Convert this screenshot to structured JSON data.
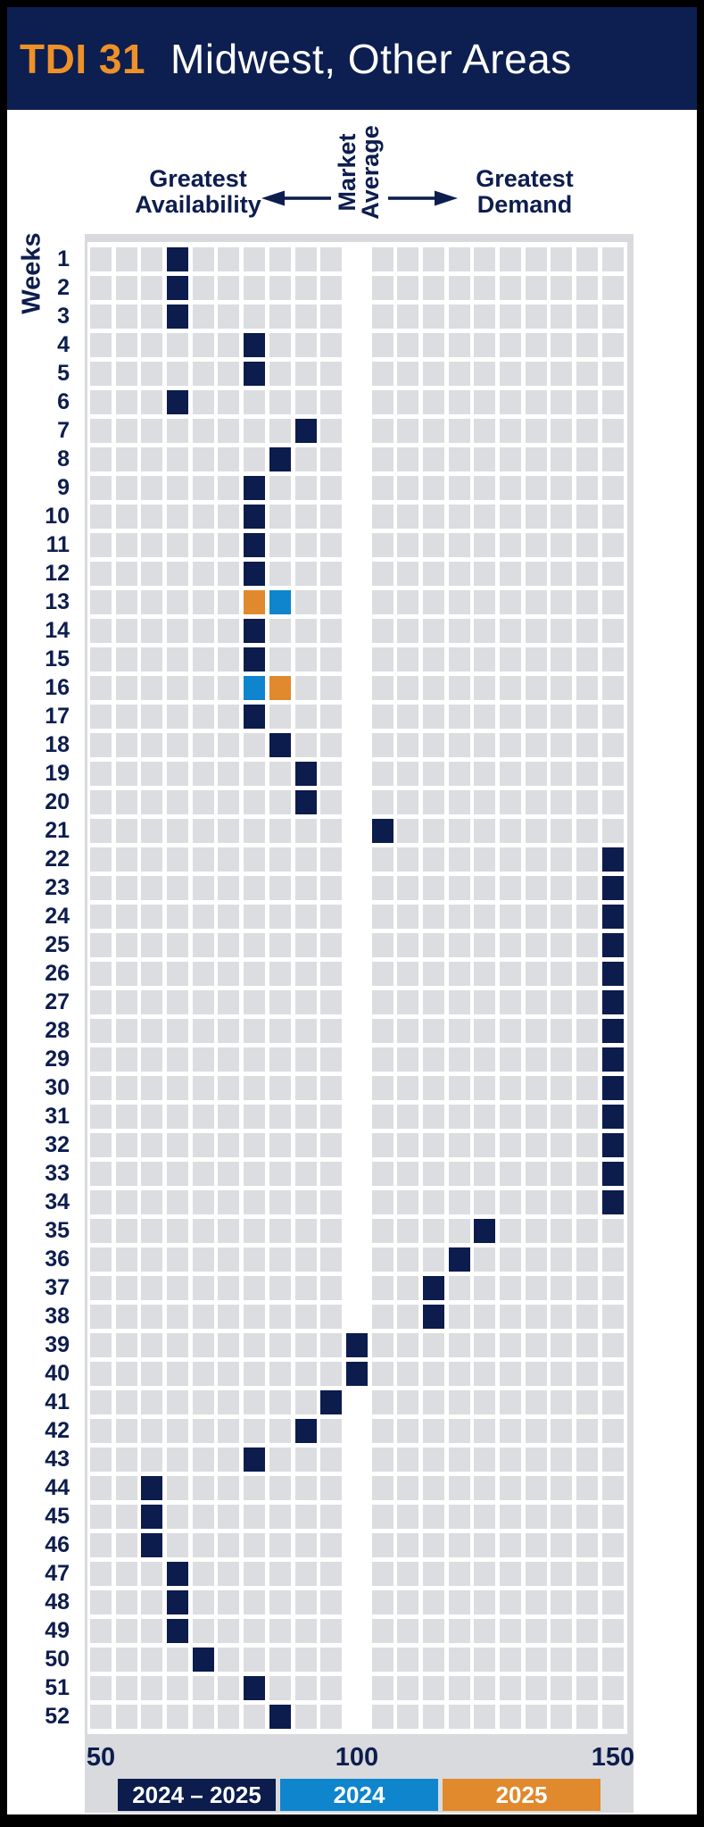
{
  "header": {
    "brand": "TDI 31",
    "title": "Midwest, Other Areas"
  },
  "annotations": {
    "left_lines": [
      "Greatest",
      "Availability"
    ],
    "center_lines": [
      "Market",
      "Average"
    ],
    "right_lines": [
      "Greatest",
      "Demand"
    ]
  },
  "colors": {
    "navy": "#0b1c4d",
    "blue": "#0e85cd",
    "orange": "#e0892d",
    "header_bg": "#0d1e50",
    "brand_orange": "#ee9128",
    "cell_gray": "#dcdde0",
    "panel_gray": "#d9dadd"
  },
  "legend": {
    "items": [
      {
        "label": "2024 – 2025",
        "color": "#0b1c4d"
      },
      {
        "label": "2024",
        "color": "#0e85cd"
      },
      {
        "label": "2025",
        "color": "#e0892d"
      }
    ]
  },
  "chart_data": {
    "type": "heatmap",
    "title": "TDI 31 Midwest, Other Areas",
    "y_label": "Weeks",
    "y_categories": [
      1,
      2,
      3,
      4,
      5,
      6,
      7,
      8,
      9,
      10,
      11,
      12,
      13,
      14,
      15,
      16,
      17,
      18,
      19,
      20,
      21,
      22,
      23,
      24,
      25,
      26,
      27,
      28,
      29,
      30,
      31,
      32,
      33,
      34,
      35,
      36,
      37,
      38,
      39,
      40,
      41,
      42,
      43,
      44,
      45,
      46,
      47,
      48,
      49,
      50,
      51,
      52
    ],
    "x_min": 50,
    "x_max": 150,
    "x_step": 5,
    "x_ticks": [
      50,
      100,
      150
    ],
    "market_average": 100,
    "axis_semantics": {
      "left": "Greatest Availability",
      "center": "Market Average",
      "right": "Greatest Demand"
    },
    "series": [
      {
        "name": "2024 – 2025",
        "color": "#0b1c4d",
        "points": [
          {
            "week": 1,
            "value": 65
          },
          {
            "week": 2,
            "value": 65
          },
          {
            "week": 3,
            "value": 65
          },
          {
            "week": 4,
            "value": 80
          },
          {
            "week": 5,
            "value": 80
          },
          {
            "week": 6,
            "value": 65
          },
          {
            "week": 7,
            "value": 90
          },
          {
            "week": 8,
            "value": 85
          },
          {
            "week": 9,
            "value": 80
          },
          {
            "week": 10,
            "value": 80
          },
          {
            "week": 11,
            "value": 80
          },
          {
            "week": 12,
            "value": 80
          },
          {
            "week": 14,
            "value": 80
          },
          {
            "week": 15,
            "value": 80
          },
          {
            "week": 17,
            "value": 80
          },
          {
            "week": 18,
            "value": 85
          },
          {
            "week": 19,
            "value": 90
          },
          {
            "week": 20,
            "value": 90
          },
          {
            "week": 21,
            "value": 105
          },
          {
            "week": 22,
            "value": 150
          },
          {
            "week": 23,
            "value": 150
          },
          {
            "week": 24,
            "value": 150
          },
          {
            "week": 25,
            "value": 150
          },
          {
            "week": 26,
            "value": 150
          },
          {
            "week": 27,
            "value": 150
          },
          {
            "week": 28,
            "value": 150
          },
          {
            "week": 29,
            "value": 150
          },
          {
            "week": 30,
            "value": 150
          },
          {
            "week": 31,
            "value": 150
          },
          {
            "week": 32,
            "value": 150
          },
          {
            "week": 33,
            "value": 150
          },
          {
            "week": 34,
            "value": 150
          },
          {
            "week": 35,
            "value": 125
          },
          {
            "week": 36,
            "value": 120
          },
          {
            "week": 37,
            "value": 115
          },
          {
            "week": 38,
            "value": 115
          },
          {
            "week": 39,
            "value": 100
          },
          {
            "week": 40,
            "value": 100
          },
          {
            "week": 41,
            "value": 95
          },
          {
            "week": 42,
            "value": 90
          },
          {
            "week": 43,
            "value": 80
          },
          {
            "week": 44,
            "value": 60
          },
          {
            "week": 45,
            "value": 60
          },
          {
            "week": 46,
            "value": 60
          },
          {
            "week": 47,
            "value": 65
          },
          {
            "week": 48,
            "value": 65
          },
          {
            "week": 49,
            "value": 65
          },
          {
            "week": 50,
            "value": 70
          },
          {
            "week": 51,
            "value": 80
          },
          {
            "week": 52,
            "value": 85
          }
        ]
      },
      {
        "name": "2024",
        "color": "#0e85cd",
        "points": [
          {
            "week": 13,
            "value": 85
          },
          {
            "week": 16,
            "value": 80
          }
        ]
      },
      {
        "name": "2025",
        "color": "#e0892d",
        "points": [
          {
            "week": 13,
            "value": 80
          },
          {
            "week": 16,
            "value": 85
          }
        ]
      }
    ]
  }
}
